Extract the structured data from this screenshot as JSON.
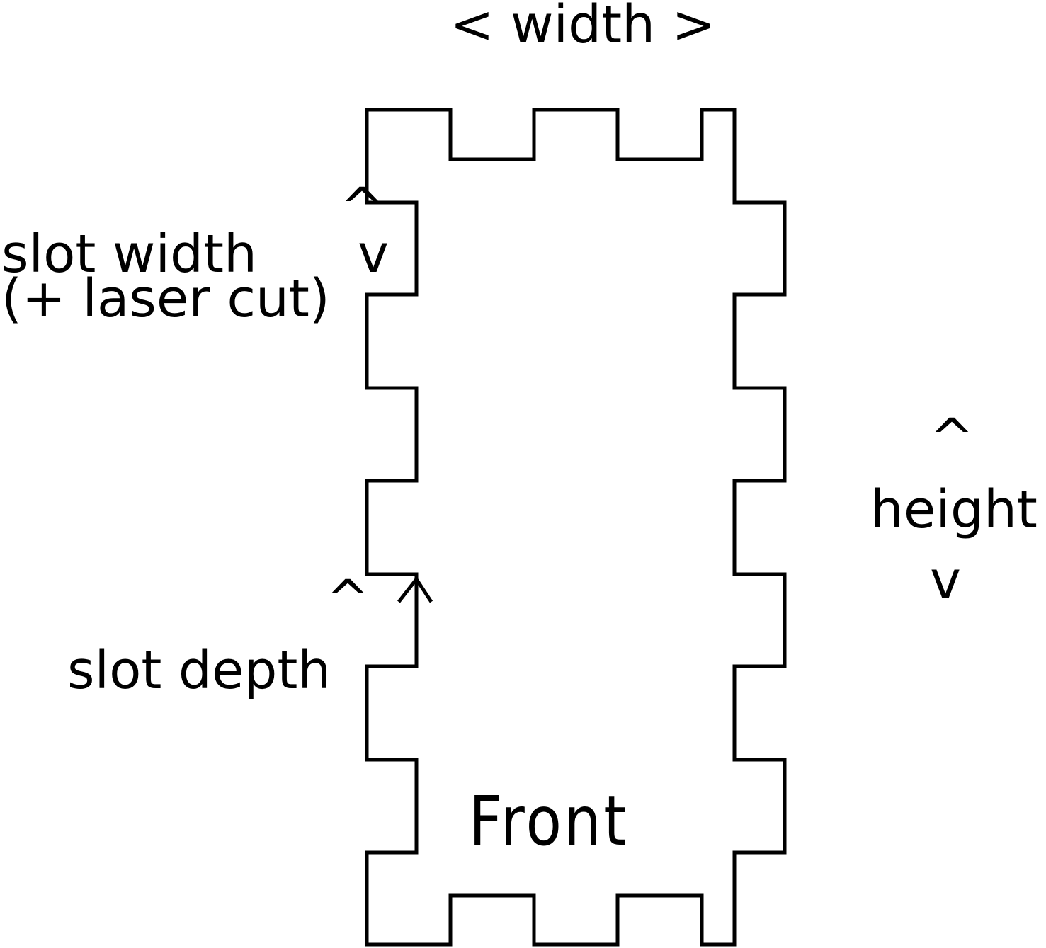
{
  "diagram": {
    "labels": {
      "width": "< width >",
      "slot_width": "slot width",
      "laser_cut": "(+ laser cut)",
      "slot_width_arrow_up": "^",
      "slot_width_arrow_down": "v",
      "slot_depth": "slot depth",
      "slot_depth_arrow_left": "^",
      "height_arrow_up": "^",
      "height": "height",
      "height_arrow_down": "v",
      "front": "Front"
    },
    "colors": {
      "stroke": "#000000",
      "text": "#000000",
      "background": "#ffffff"
    }
  }
}
